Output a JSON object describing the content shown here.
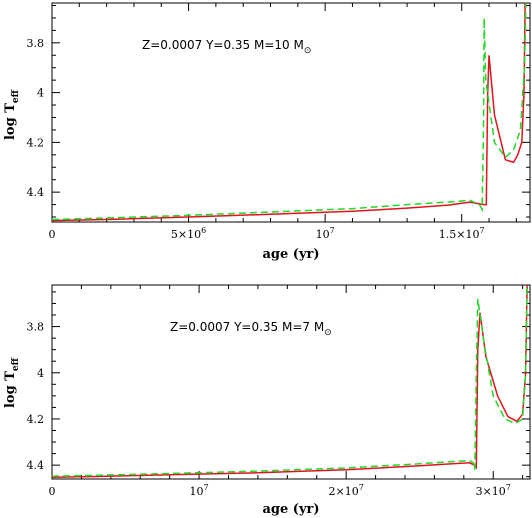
{
  "chart_data": [
    {
      "type": "line",
      "title": "",
      "annotation": {
        "text": "Z=0.0007 Y=0.35   M=10 M",
        "sun": "⊙"
      },
      "xlabel": "age (yr)",
      "ylabel": {
        "main": "log T",
        "sub": "eff"
      },
      "xlim": [
        0,
        17500000
      ],
      "ylim": [
        4.52,
        3.64
      ],
      "y_inverted": true,
      "xticks": [
        {
          "value": 0,
          "label": "0"
        },
        {
          "value": 5000000,
          "label": "5×10",
          "exp": "6"
        },
        {
          "value": 10000000,
          "label": "10",
          "exp": "7"
        },
        {
          "value": 15000000,
          "label": "1.5×10",
          "exp": "7"
        }
      ],
      "yticks": [
        {
          "value": 3.8,
          "label": "3.8"
        },
        {
          "value": 4.0,
          "label": "4"
        },
        {
          "value": 4.2,
          "label": "4.2"
        },
        {
          "value": 4.4,
          "label": "4.4"
        }
      ],
      "series": [
        {
          "color": "#e0141e",
          "dash": "solid",
          "x": [
            0,
            2000000,
            5000000,
            8000000,
            11000000,
            13000000,
            14500000,
            15300000,
            15800000,
            15900000,
            15950000,
            16000000,
            16200000,
            16600000,
            16900000,
            17050000,
            17200000,
            17280000,
            17320000
          ],
          "y": [
            4.514,
            4.51,
            4.5,
            4.489,
            4.477,
            4.464,
            4.452,
            4.44,
            4.45,
            4.45,
            4.0,
            3.85,
            4.09,
            4.27,
            4.28,
            4.25,
            4.2,
            4.0,
            3.64
          ]
        },
        {
          "color": "#22d82a",
          "dash": "dashed",
          "x": [
            0,
            2000000,
            5000000,
            8000000,
            11000000,
            13000000,
            14500000,
            15300000,
            15650000,
            15750000,
            15800000,
            15820000,
            15880000,
            16200000,
            16600000,
            16900000,
            17150000,
            17300000,
            17350000
          ],
          "y": [
            4.51,
            4.504,
            4.493,
            4.48,
            4.466,
            4.45,
            4.44,
            4.433,
            4.45,
            4.47,
            4.1,
            3.7,
            3.95,
            4.2,
            4.26,
            4.23,
            4.15,
            3.9,
            3.64
          ]
        }
      ]
    },
    {
      "type": "line",
      "title": "",
      "annotation": {
        "text": "Z=0.0007 Y=0.35   M=7 M",
        "sun": "⊙"
      },
      "xlabel": "age (yr)",
      "ylabel": {
        "main": "log T",
        "sub": "eff"
      },
      "xlim": [
        0,
        32500000
      ],
      "ylim": [
        4.46,
        3.62
      ],
      "y_inverted": true,
      "xticks": [
        {
          "value": 0,
          "label": "0"
        },
        {
          "value": 10000000,
          "label": "10",
          "exp": "7"
        },
        {
          "value": 20000000,
          "label": "2×10",
          "exp": "7"
        },
        {
          "value": 30000000,
          "label": "3×10",
          "exp": "7"
        }
      ],
      "yticks": [
        {
          "value": 3.8,
          "label": "3.8"
        },
        {
          "value": 4.0,
          "label": "4"
        },
        {
          "value": 4.2,
          "label": "4.2"
        },
        {
          "value": 4.4,
          "label": "4.4"
        }
      ],
      "series": [
        {
          "color": "#e0141e",
          "dash": "solid",
          "x": [
            0,
            3000000,
            8000000,
            14000000,
            20000000,
            25000000,
            27500000,
            28400000,
            28700000,
            28850000,
            28950000,
            29100000,
            29500000,
            30300000,
            31000000,
            31600000,
            32000000,
            32200000,
            32300000
          ],
          "y": [
            4.452,
            4.449,
            4.442,
            4.433,
            4.42,
            4.403,
            4.393,
            4.39,
            4.4,
            4.41,
            3.9,
            3.74,
            3.93,
            4.1,
            4.19,
            4.21,
            4.18,
            4.0,
            3.62
          ]
        },
        {
          "color": "#22d82a",
          "dash": "dashed",
          "x": [
            0,
            3000000,
            8000000,
            14000000,
            20000000,
            25000000,
            27500000,
            28400000,
            28650000,
            28750000,
            28850000,
            28950000,
            29400000,
            30000000,
            30800000,
            31500000,
            32000000,
            32200000,
            32300000
          ],
          "y": [
            4.448,
            4.444,
            4.436,
            4.426,
            4.412,
            4.394,
            4.383,
            4.38,
            4.39,
            4.42,
            4.0,
            3.68,
            3.88,
            4.1,
            4.2,
            4.22,
            4.2,
            4.0,
            3.62
          ]
        }
      ]
    }
  ]
}
